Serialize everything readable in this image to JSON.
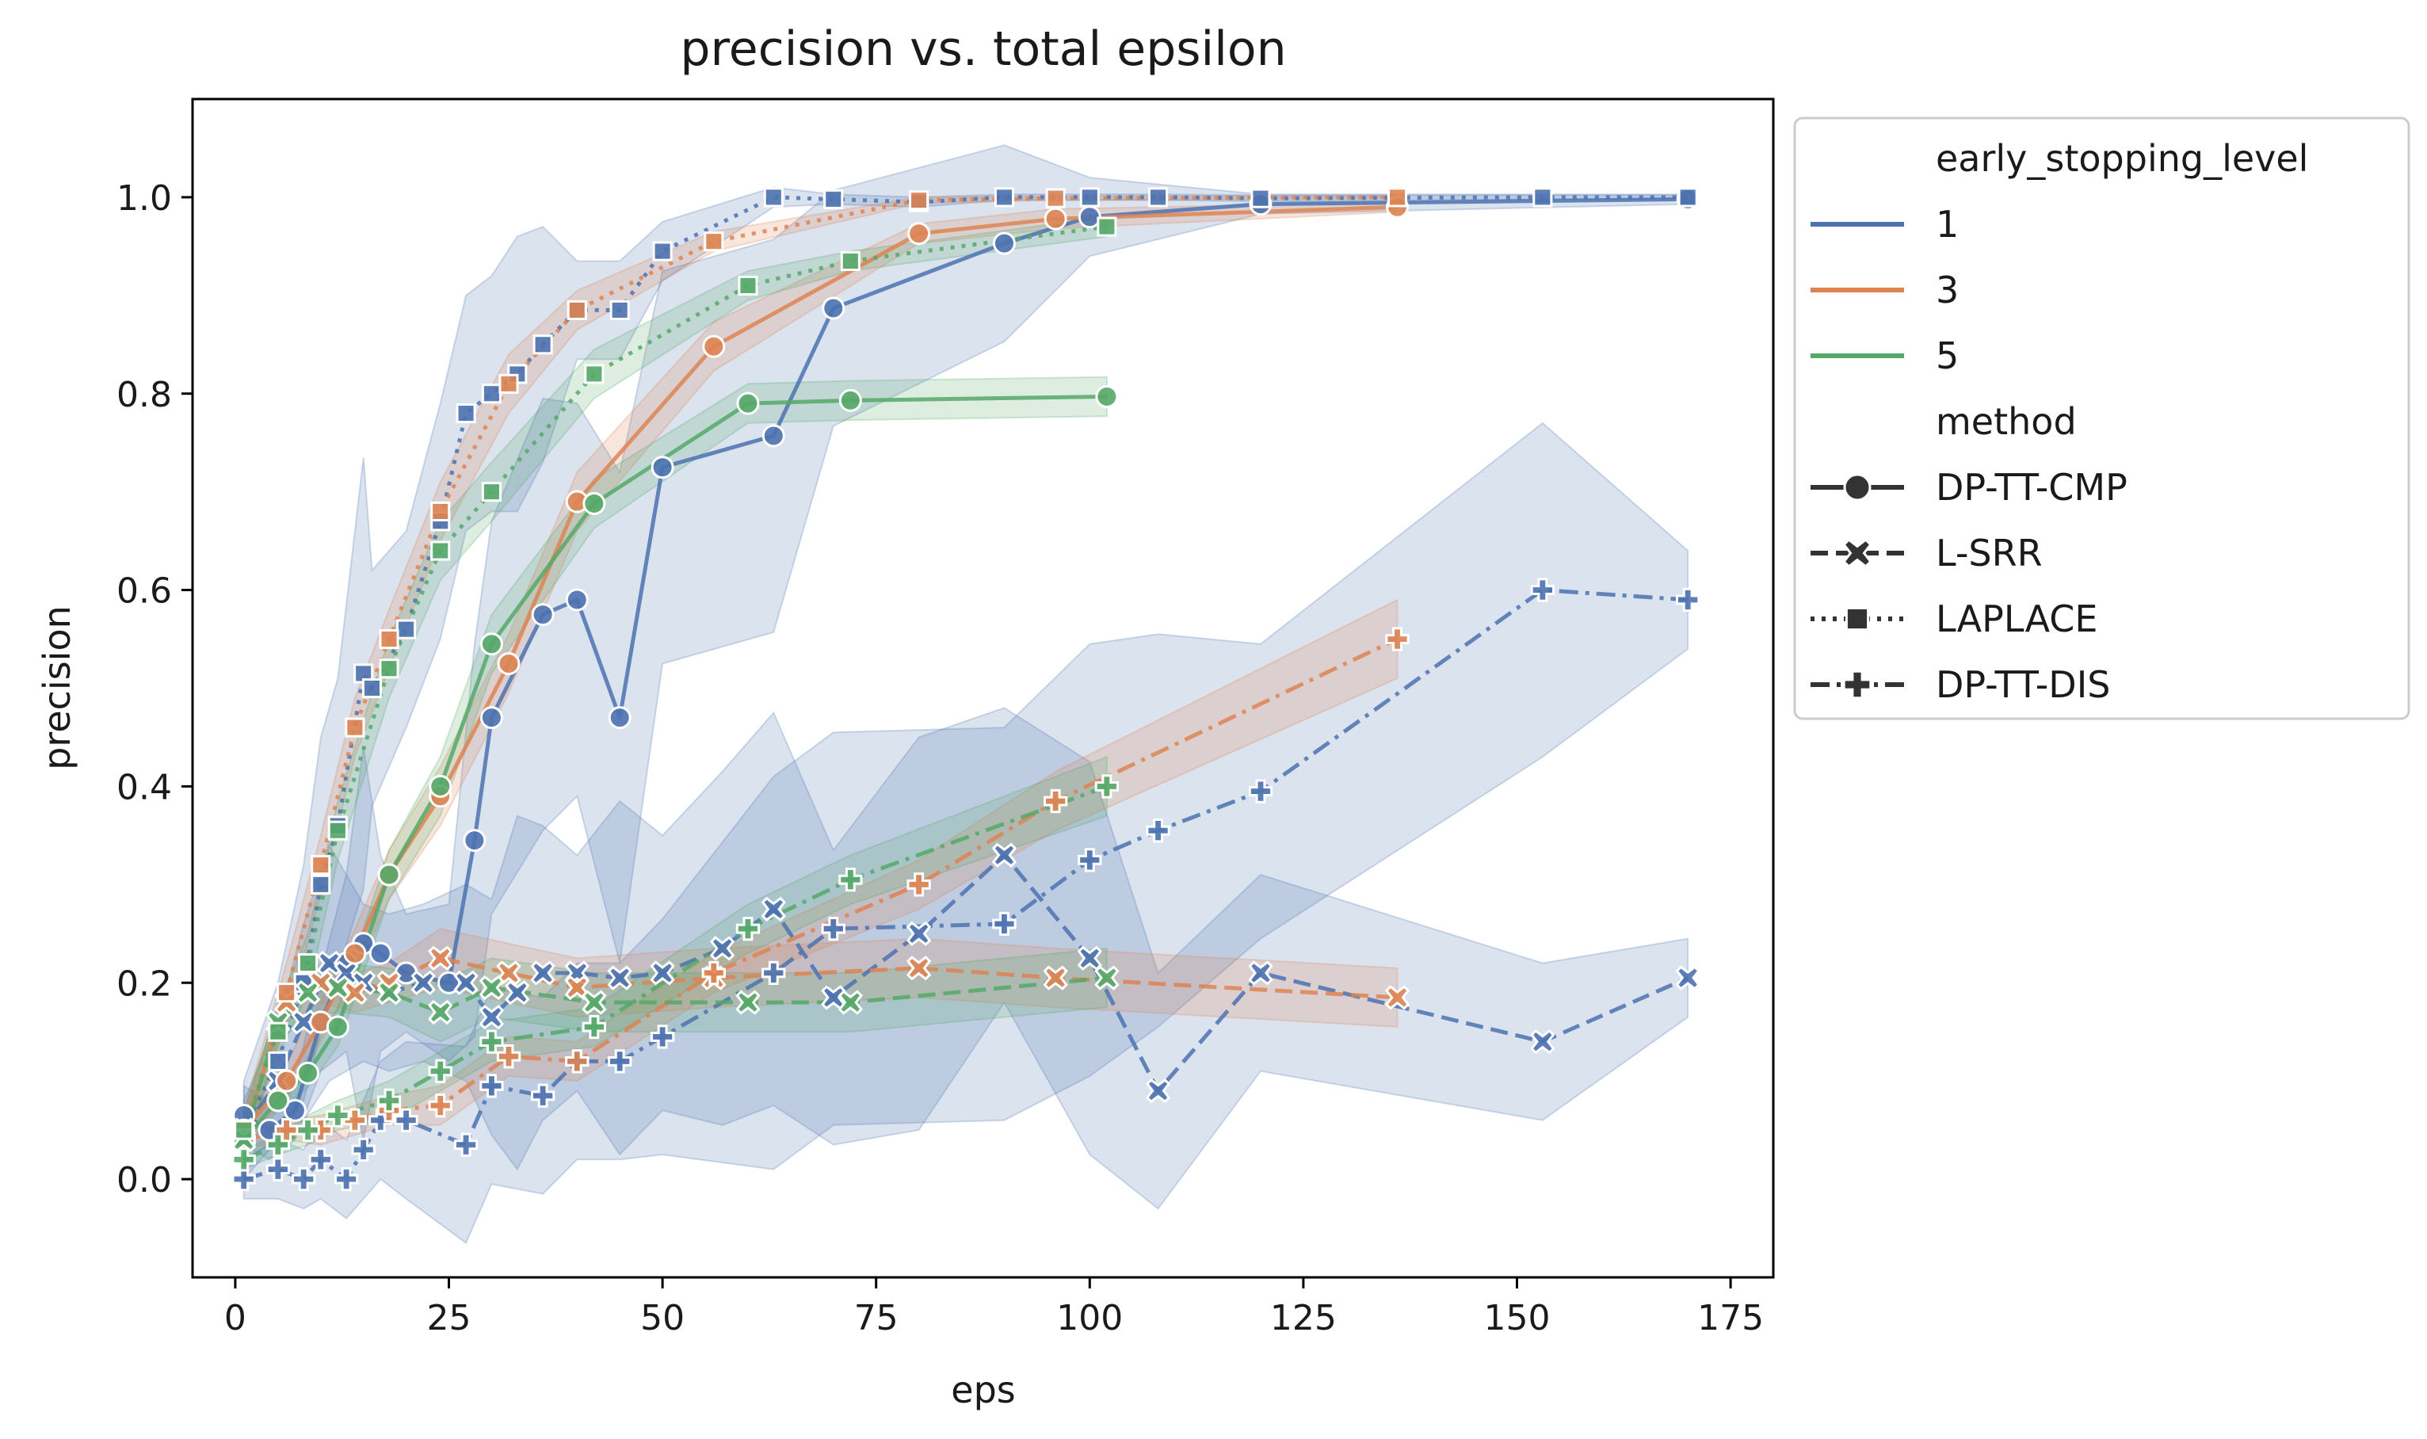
{
  "chart_data": {
    "type": "line",
    "title": "precision vs. total epsilon",
    "xlabel": "eps",
    "ylabel": "precision",
    "xlim": [
      -5,
      180
    ],
    "ylim": [
      -0.1,
      1.1
    ],
    "x_ticks": [
      0,
      25,
      50,
      75,
      100,
      125,
      150,
      175
    ],
    "y_ticks": [
      0.0,
      0.2,
      0.4,
      0.6,
      0.8,
      1.0
    ],
    "x_tick_labels": [
      "0",
      "25",
      "50",
      "75",
      "100",
      "125",
      "150",
      "175"
    ],
    "y_tick_labels": [
      "0.0",
      "0.2",
      "0.4",
      "0.6",
      "0.8",
      "1.0"
    ],
    "grid": false,
    "legend": {
      "placement": "outside-right",
      "hue_title": "early_stopping_level",
      "hue_entries": [
        {
          "label": "1",
          "color": "#4c72b0"
        },
        {
          "label": "3",
          "color": "#dd8452"
        },
        {
          "label": "5",
          "color": "#55a868"
        }
      ],
      "style_title": "method",
      "style_entries": [
        {
          "label": "DP-TT-CMP",
          "marker": "circle",
          "dash": "solid"
        },
        {
          "label": "L-SRR",
          "marker": "x",
          "dash": "dashed"
        },
        {
          "label": "LAPLACE",
          "marker": "square",
          "dash": "dotted"
        },
        {
          "label": "DP-TT-DIS",
          "marker": "plus",
          "dash": "dashdot"
        }
      ]
    },
    "series": [
      {
        "level": "1",
        "method": "DP-TT-CMP",
        "color": "#4c72b0",
        "marker": "circle",
        "dash": "solid",
        "x": [
          1,
          4,
          7,
          10,
          13,
          15,
          17,
          20,
          25,
          28,
          30,
          36,
          40,
          45,
          50,
          63,
          70,
          90,
          100,
          120,
          170
        ],
        "y": [
          0.065,
          0.05,
          0.07,
          0.16,
          0.22,
          0.24,
          0.23,
          0.21,
          0.2,
          0.345,
          0.47,
          0.575,
          0.59,
          0.47,
          0.725,
          0.757,
          0.887,
          0.953,
          0.98,
          0.993,
          0.998
        ],
        "band": [
          0.03,
          0.03,
          0.03,
          0.05,
          0.09,
          0.2,
          0.1,
          0.06,
          0.08,
          0.2,
          0.2,
          0.22,
          0.2,
          0.25,
          0.2,
          0.2,
          0.12,
          0.1,
          0.04,
          0.01,
          0.005
        ]
      },
      {
        "level": "1",
        "method": "L-SRR",
        "color": "#4c72b0",
        "marker": "x",
        "dash": "dashed",
        "x": [
          1,
          5,
          8,
          11,
          13,
          15,
          18,
          22,
          27,
          30,
          33,
          36,
          40,
          45,
          50,
          57,
          63,
          70,
          80,
          90,
          100,
          108,
          120,
          153,
          170
        ],
        "y": [
          0.05,
          0.1,
          0.16,
          0.22,
          0.21,
          0.2,
          0.19,
          0.2,
          0.2,
          0.165,
          0.19,
          0.21,
          0.21,
          0.205,
          0.21,
          0.235,
          0.275,
          0.185,
          0.25,
          0.33,
          0.225,
          0.09,
          0.21,
          0.14,
          0.205
        ],
        "band": [
          0.03,
          0.06,
          0.1,
          0.12,
          0.1,
          0.08,
          0.08,
          0.08,
          0.1,
          0.12,
          0.18,
          0.15,
          0.12,
          0.18,
          0.14,
          0.18,
          0.2,
          0.15,
          0.2,
          0.15,
          0.2,
          0.12,
          0.1,
          0.08,
          0.04
        ]
      },
      {
        "level": "1",
        "method": "LAPLACE",
        "color": "#4c72b0",
        "marker": "square",
        "dash": "dotted",
        "x": [
          1,
          5,
          8,
          10,
          12,
          15,
          16,
          20,
          24,
          27,
          30,
          33,
          36,
          40,
          45,
          50,
          63,
          70,
          80,
          90,
          100,
          108,
          120,
          153,
          170
        ],
        "y": [
          0.05,
          0.12,
          0.2,
          0.3,
          0.36,
          0.515,
          0.5,
          0.56,
          0.67,
          0.78,
          0.8,
          0.82,
          0.85,
          0.885,
          0.885,
          0.945,
          1.0,
          0.998,
          0.995,
          1.0,
          1.0,
          1.0,
          0.999,
          1.0,
          1.0
        ],
        "band": [
          0.05,
          0.08,
          0.12,
          0.15,
          0.15,
          0.22,
          0.12,
          0.1,
          0.12,
          0.12,
          0.12,
          0.14,
          0.12,
          0.05,
          0.05,
          0.03,
          0.01,
          0.005,
          0.005,
          0.003,
          0.003,
          0.003,
          0.003,
          0.002,
          0.002
        ]
      },
      {
        "level": "1",
        "method": "DP-TT-DIS",
        "color": "#4c72b0",
        "marker": "plus",
        "dash": "dashdot",
        "x": [
          1,
          5,
          8,
          10,
          13,
          15,
          17,
          20,
          27,
          30,
          36,
          40,
          45,
          50,
          63,
          70,
          90,
          100,
          108,
          120,
          153,
          170
        ],
        "y": [
          0.0,
          0.01,
          0.0,
          0.02,
          0.0,
          0.03,
          0.06,
          0.06,
          0.035,
          0.095,
          0.085,
          0.12,
          0.12,
          0.145,
          0.21,
          0.255,
          0.26,
          0.325,
          0.355,
          0.395,
          0.6,
          0.59
        ],
        "band": [
          0.02,
          0.03,
          0.03,
          0.04,
          0.04,
          0.05,
          0.06,
          0.08,
          0.1,
          0.1,
          0.1,
          0.1,
          0.1,
          0.12,
          0.2,
          0.2,
          0.2,
          0.22,
          0.2,
          0.15,
          0.17,
          0.05
        ]
      },
      {
        "level": "3",
        "method": "DP-TT-CMP",
        "color": "#dd8452",
        "marker": "circle",
        "dash": "solid",
        "x": [
          1,
          6,
          10,
          14,
          18,
          24,
          32,
          40,
          56,
          80,
          96,
          136
        ],
        "y": [
          0.05,
          0.1,
          0.16,
          0.23,
          0.31,
          0.39,
          0.525,
          0.69,
          0.848,
          0.963,
          0.978,
          0.99
        ],
        "band": [
          0.01,
          0.02,
          0.02,
          0.025,
          0.025,
          0.03,
          0.03,
          0.03,
          0.025,
          0.01,
          0.01,
          0.005
        ]
      },
      {
        "level": "3",
        "method": "L-SRR",
        "color": "#dd8452",
        "marker": "x",
        "dash": "dashed",
        "x": [
          1,
          6,
          10,
          14,
          18,
          24,
          32,
          40,
          56,
          80,
          96,
          136
        ],
        "y": [
          0.05,
          0.18,
          0.2,
          0.19,
          0.2,
          0.225,
          0.21,
          0.195,
          0.205,
          0.215,
          0.205,
          0.185
        ],
        "band": [
          0.02,
          0.02,
          0.02,
          0.02,
          0.02,
          0.03,
          0.03,
          0.03,
          0.03,
          0.03,
          0.03,
          0.03
        ]
      },
      {
        "level": "3",
        "method": "LAPLACE",
        "color": "#dd8452",
        "marker": "square",
        "dash": "dotted",
        "x": [
          1,
          6,
          10,
          14,
          18,
          24,
          32,
          40,
          56,
          80,
          96,
          136
        ],
        "y": [
          0.05,
          0.19,
          0.32,
          0.46,
          0.55,
          0.68,
          0.81,
          0.885,
          0.955,
          0.997,
          0.999,
          1.0
        ],
        "band": [
          0.02,
          0.03,
          0.03,
          0.03,
          0.03,
          0.03,
          0.03,
          0.02,
          0.01,
          0.003,
          0.002,
          0.001
        ]
      },
      {
        "level": "3",
        "method": "DP-TT-DIS",
        "color": "#dd8452",
        "marker": "plus",
        "dash": "dashdot",
        "x": [
          1,
          6,
          10,
          14,
          18,
          24,
          32,
          40,
          56,
          80,
          96,
          136
        ],
        "y": [
          0.04,
          0.05,
          0.05,
          0.06,
          0.07,
          0.075,
          0.125,
          0.12,
          0.21,
          0.3,
          0.385,
          0.55
        ],
        "band": [
          0.01,
          0.01,
          0.015,
          0.015,
          0.015,
          0.02,
          0.02,
          0.02,
          0.02,
          0.025,
          0.03,
          0.04
        ]
      },
      {
        "level": "5",
        "method": "DP-TT-CMP",
        "color": "#55a868",
        "marker": "circle",
        "dash": "solid",
        "x": [
          1,
          5,
          8.5,
          12,
          18,
          24,
          30,
          42,
          60,
          72,
          102
        ],
        "y": [
          0.04,
          0.08,
          0.108,
          0.155,
          0.31,
          0.4,
          0.545,
          0.688,
          0.79,
          0.793,
          0.797
        ],
        "band": [
          0.01,
          0.01,
          0.015,
          0.02,
          0.025,
          0.03,
          0.03,
          0.025,
          0.02,
          0.02,
          0.02
        ]
      },
      {
        "level": "5",
        "method": "L-SRR",
        "color": "#55a868",
        "marker": "x",
        "dash": "dashed",
        "x": [
          1,
          5,
          8.5,
          12,
          18,
          24,
          30,
          42,
          60,
          72,
          102
        ],
        "y": [
          0.04,
          0.16,
          0.19,
          0.195,
          0.19,
          0.17,
          0.195,
          0.18,
          0.18,
          0.18,
          0.205
        ],
        "band": [
          0.02,
          0.02,
          0.025,
          0.025,
          0.025,
          0.03,
          0.03,
          0.03,
          0.03,
          0.03,
          0.03
        ]
      },
      {
        "level": "5",
        "method": "LAPLACE",
        "color": "#55a868",
        "marker": "square",
        "dash": "dotted",
        "x": [
          1,
          5,
          8.5,
          12,
          18,
          24,
          30,
          42,
          60,
          72,
          102
        ],
        "y": [
          0.05,
          0.15,
          0.22,
          0.355,
          0.52,
          0.64,
          0.7,
          0.82,
          0.91,
          0.935,
          0.97
        ],
        "band": [
          0.02,
          0.025,
          0.03,
          0.03,
          0.03,
          0.03,
          0.03,
          0.025,
          0.015,
          0.01,
          0.01
        ]
      },
      {
        "level": "5",
        "method": "DP-TT-DIS",
        "color": "#55a868",
        "marker": "plus",
        "dash": "dashdot",
        "x": [
          1,
          5,
          8.5,
          12,
          18,
          24,
          30,
          42,
          60,
          72,
          102
        ],
        "y": [
          0.02,
          0.035,
          0.05,
          0.065,
          0.08,
          0.11,
          0.14,
          0.155,
          0.255,
          0.305,
          0.4
        ],
        "band": [
          0.01,
          0.01,
          0.015,
          0.015,
          0.02,
          0.02,
          0.02,
          0.02,
          0.025,
          0.025,
          0.03
        ]
      }
    ]
  }
}
